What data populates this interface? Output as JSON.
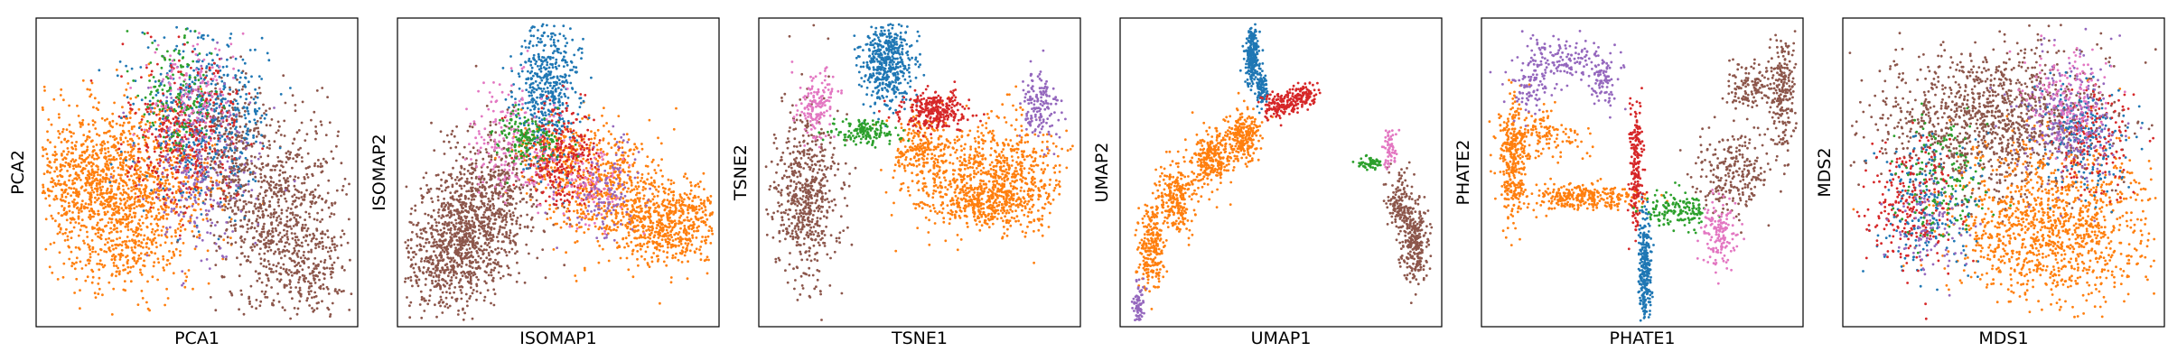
{
  "chart_data": [
    {
      "type": "scatter",
      "xlabel": "PCA1",
      "ylabel": "PCA2",
      "series": [
        {
          "color": "#ff7f0e",
          "clusters": [
            [
              0.25,
              0.58,
              0.11,
              0.15,
              1200
            ],
            [
              0.45,
              0.55,
              0.08,
              0.12,
              200
            ],
            [
              0.12,
              0.5,
              0.08,
              0.1,
              250
            ]
          ]
        },
        {
          "color": "#8c564b",
          "clusters": [
            [
              0.76,
              0.65,
              0.1,
              0.16,
              800
            ],
            [
              0.6,
              0.42,
              0.07,
              0.12,
              300
            ],
            [
              0.87,
              0.83,
              0.05,
              0.06,
              120
            ]
          ]
        },
        {
          "color": "#1f77b4",
          "clusters": [
            [
              0.53,
              0.3,
              0.1,
              0.14,
              500
            ]
          ]
        },
        {
          "color": "#d62728",
          "clusters": [
            [
              0.46,
              0.38,
              0.08,
              0.12,
              400
            ]
          ]
        },
        {
          "color": "#9467bd",
          "clusters": [
            [
              0.51,
              0.48,
              0.09,
              0.14,
              250
            ]
          ]
        },
        {
          "color": "#2ca02c",
          "clusters": [
            [
              0.44,
              0.24,
              0.06,
              0.1,
              150
            ]
          ]
        },
        {
          "color": "#e377c2",
          "clusters": [
            [
              0.48,
              0.25,
              0.07,
              0.08,
              120
            ]
          ]
        }
      ]
    },
    {
      "type": "scatter",
      "xlabel": "ISOMAP1",
      "ylabel": "ISOMAP2",
      "series": [
        {
          "color": "#8c564b",
          "clusters": [
            [
              0.15,
              0.78,
              0.07,
              0.1,
              500
            ],
            [
              0.3,
              0.58,
              0.08,
              0.12,
              500
            ],
            [
              0.22,
              0.68,
              0.07,
              0.1,
              400
            ]
          ]
        },
        {
          "color": "#ff7f0e",
          "clusters": [
            [
              0.85,
              0.66,
              0.08,
              0.07,
              600
            ],
            [
              0.65,
              0.55,
              0.08,
              0.09,
              500
            ],
            [
              0.5,
              0.45,
              0.06,
              0.06,
              200
            ]
          ]
        },
        {
          "color": "#1f77b4",
          "clusters": [
            [
              0.47,
              0.22,
              0.05,
              0.12,
              500
            ]
          ]
        },
        {
          "color": "#d62728",
          "clusters": [
            [
              0.52,
              0.45,
              0.06,
              0.08,
              300
            ]
          ]
        },
        {
          "color": "#e377c2",
          "clusters": [
            [
              0.35,
              0.4,
              0.07,
              0.1,
              200
            ],
            [
              0.6,
              0.55,
              0.06,
              0.06,
              100
            ]
          ]
        },
        {
          "color": "#2ca02c",
          "clusters": [
            [
              0.4,
              0.38,
              0.05,
              0.04,
              150
            ]
          ]
        },
        {
          "color": "#9467bd",
          "clusters": [
            [
              0.65,
              0.55,
              0.06,
              0.08,
              120
            ]
          ]
        }
      ]
    },
    {
      "type": "scatter",
      "xlabel": "TSNE1",
      "ylabel": "TSNE2",
      "series": [
        {
          "color": "#ff7f0e",
          "clusters": [
            [
              0.62,
              0.5,
              0.09,
              0.08,
              400
            ],
            [
              0.8,
              0.5,
              0.07,
              0.09,
              400
            ],
            [
              0.72,
              0.6,
              0.08,
              0.04,
              300
            ],
            [
              0.5,
              0.42,
              0.04,
              0.05,
              150
            ]
          ]
        },
        {
          "color": "#8c564b",
          "clusters": [
            [
              0.15,
              0.58,
              0.05,
              0.14,
              600
            ]
          ]
        },
        {
          "color": "#1f77b4",
          "clusters": [
            [
              0.4,
              0.14,
              0.04,
              0.07,
              500
            ]
          ]
        },
        {
          "color": "#d62728",
          "clusters": [
            [
              0.55,
              0.3,
              0.05,
              0.03,
              300
            ]
          ]
        },
        {
          "color": "#e377c2",
          "clusters": [
            [
              0.18,
              0.28,
              0.03,
              0.05,
              150
            ]
          ]
        },
        {
          "color": "#9467bd",
          "clusters": [
            [
              0.87,
              0.28,
              0.03,
              0.06,
              150
            ]
          ]
        },
        {
          "color": "#2ca02c",
          "clusters": [
            [
              0.33,
              0.37,
              0.05,
              0.02,
              150
            ]
          ]
        }
      ]
    },
    {
      "type": "scatter",
      "xlabel": "UMAP1",
      "ylabel": "UMAP2",
      "series": [
        {
          "color": "#ff7f0e",
          "clusters": [
            [
              0.1,
              0.75,
              0.02,
              0.07,
              250
            ],
            [
              0.18,
              0.58,
              0.03,
              0.06,
              250
            ],
            [
              0.28,
              0.45,
              0.03,
              0.05,
              250
            ],
            [
              0.38,
              0.38,
              0.03,
              0.04,
              250
            ]
          ]
        },
        {
          "color": "#8c564b",
          "clusters": [
            [
              0.92,
              0.72,
              0.02,
              0.07,
              250
            ],
            [
              0.87,
              0.6,
              0.02,
              0.05,
              150
            ]
          ]
        },
        {
          "color": "#1f77b4",
          "clusters": [
            [
              0.41,
              0.12,
              0.01,
              0.05,
              250
            ],
            [
              0.44,
              0.23,
              0.01,
              0.03,
              100
            ]
          ]
        },
        {
          "color": "#d62728",
          "clusters": [
            [
              0.5,
              0.28,
              0.03,
              0.02,
              150
            ],
            [
              0.57,
              0.25,
              0.02,
              0.02,
              100
            ]
          ]
        },
        {
          "color": "#9467bd",
          "clusters": [
            [
              0.06,
              0.93,
              0.01,
              0.04,
              80
            ]
          ]
        },
        {
          "color": "#e377c2",
          "clusters": [
            [
              0.84,
              0.42,
              0.01,
              0.04,
              60
            ]
          ]
        },
        {
          "color": "#2ca02c",
          "clusters": [
            [
              0.78,
              0.47,
              0.02,
              0.01,
              60
            ]
          ]
        }
      ]
    },
    {
      "type": "scatter",
      "xlabel": "PHATE1",
      "ylabel": "PHATE2",
      "series": [
        {
          "color": "#ff7f0e",
          "clusters": [
            [
              0.1,
              0.46,
              0.02,
              0.09,
              300
            ],
            [
              0.3,
              0.58,
              0.1,
              0.02,
              300
            ],
            [
              0.18,
              0.38,
              0.06,
              0.04,
              150
            ]
          ]
        },
        {
          "color": "#8c564b",
          "clusters": [
            [
              0.78,
              0.5,
              0.06,
              0.07,
              250
            ],
            [
              0.94,
              0.25,
              0.02,
              0.1,
              200
            ],
            [
              0.84,
              0.22,
              0.05,
              0.04,
              150
            ]
          ]
        },
        {
          "color": "#1f77b4",
          "clusters": [
            [
              0.51,
              0.83,
              0.01,
              0.1,
              300
            ]
          ]
        },
        {
          "color": "#9467bd",
          "clusters": [
            [
              0.27,
              0.14,
              0.08,
              0.04,
              150
            ],
            [
              0.15,
              0.22,
              0.03,
              0.05,
              80
            ],
            [
              0.38,
              0.2,
              0.02,
              0.04,
              80
            ]
          ]
        },
        {
          "color": "#d62728",
          "clusters": [
            [
              0.48,
              0.48,
              0.01,
              0.1,
              200
            ]
          ]
        },
        {
          "color": "#2ca02c",
          "clusters": [
            [
              0.6,
              0.62,
              0.05,
              0.03,
              150
            ]
          ]
        },
        {
          "color": "#e377c2",
          "clusters": [
            [
              0.74,
              0.7,
              0.03,
              0.06,
              150
            ]
          ]
        }
      ]
    },
    {
      "type": "scatter",
      "xlabel": "MDS1",
      "ylabel": "MDS2",
      "series": [
        {
          "color": "#8c564b",
          "clusters": [
            [
              0.45,
              0.33,
              0.18,
              0.12,
              1200
            ]
          ]
        },
        {
          "color": "#ff7f0e",
          "clusters": [
            [
              0.65,
              0.66,
              0.15,
              0.13,
              1200
            ]
          ]
        },
        {
          "color": "#1f77b4",
          "clusters": [
            [
              0.25,
              0.6,
              0.08,
              0.12,
              200
            ],
            [
              0.75,
              0.38,
              0.07,
              0.1,
              200
            ]
          ]
        },
        {
          "color": "#d62728",
          "clusters": [
            [
              0.22,
              0.6,
              0.07,
              0.1,
              250
            ],
            [
              0.78,
              0.4,
              0.06,
              0.1,
              150
            ]
          ]
        },
        {
          "color": "#9467bd",
          "clusters": [
            [
              0.7,
              0.34,
              0.08,
              0.1,
              250
            ],
            [
              0.28,
              0.68,
              0.06,
              0.08,
              100
            ]
          ]
        },
        {
          "color": "#2ca02c",
          "clusters": [
            [
              0.3,
              0.52,
              0.06,
              0.1,
              150
            ]
          ]
        },
        {
          "color": "#e377c2",
          "clusters": [
            [
              0.7,
              0.25,
              0.06,
              0.08,
              150
            ]
          ]
        }
      ]
    }
  ]
}
